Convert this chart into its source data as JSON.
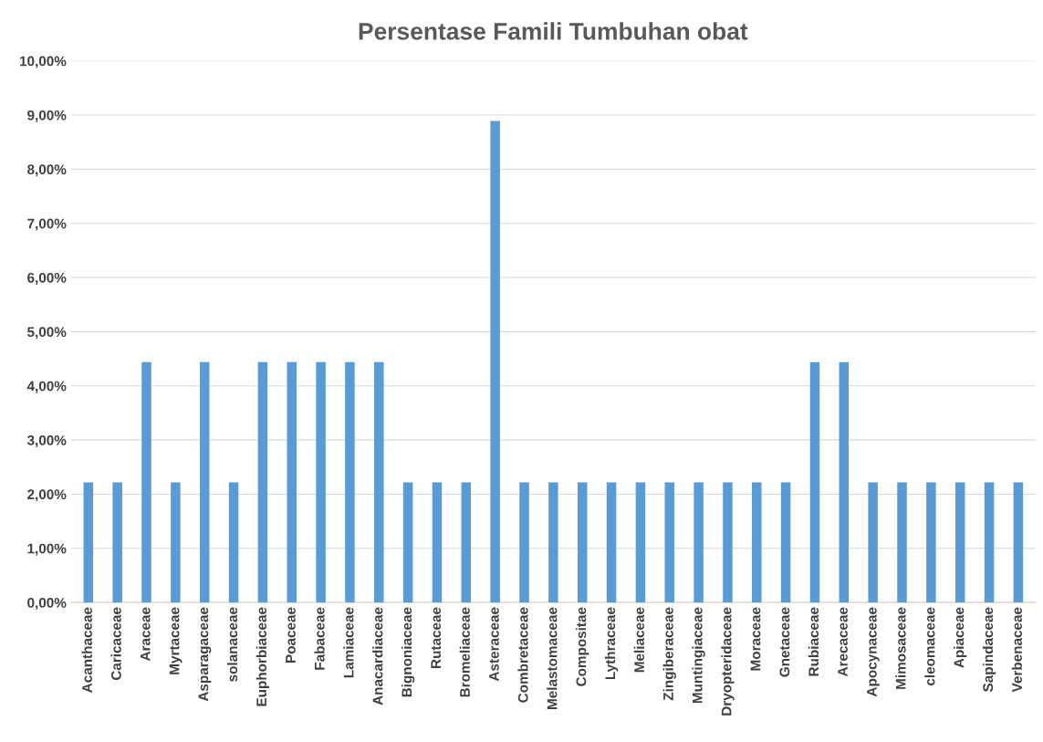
{
  "chart_data": {
    "type": "bar",
    "title": "Persentase Famili Tumbuhan obat",
    "categories": [
      "Acanthaceae",
      "Caricaceae",
      "Araceae",
      "Myrtaceae",
      "Asparagaceae",
      "solanaceae",
      "Euphorbiaceae",
      "Poaceae",
      "Fabaceae",
      "Lamiaceae",
      "Anacardiaceae",
      "Bignoniaceae",
      "Rutaceae",
      "Bromeliaceae",
      "Asteraceae",
      "Combretaceae",
      "Melastomaceae",
      "Compositae",
      "Lythraceae",
      "Meliaceae",
      "Zingiberaceae",
      "Muntingiaceae",
      "Dryopteridaceae",
      "Moraceae",
      "Gnetaceae",
      "Rubiaceae",
      "Arecaceae",
      "Apocynaceae",
      "Mimosaceae",
      "cleomaceae",
      "Apiaceae",
      "Sapindaceae",
      "Verbenaceae"
    ],
    "values": [
      2.22,
      2.22,
      4.44,
      2.22,
      4.44,
      2.22,
      4.44,
      4.44,
      4.44,
      4.44,
      4.44,
      2.22,
      2.22,
      2.22,
      8.89,
      2.22,
      2.22,
      2.22,
      2.22,
      2.22,
      2.22,
      2.22,
      2.22,
      2.22,
      2.22,
      4.44,
      4.44,
      2.22,
      2.22,
      2.22,
      2.22,
      2.22,
      2.22
    ],
    "color": "#5b9bd5",
    "ylim": [
      0,
      10
    ],
    "yticks": [
      {
        "value": 0,
        "label": "0,00%"
      },
      {
        "value": 1,
        "label": "1,00%"
      },
      {
        "value": 2,
        "label": "2,00%"
      },
      {
        "value": 3,
        "label": "3,00%"
      },
      {
        "value": 4,
        "label": "4,00%"
      },
      {
        "value": 5,
        "label": "5,00%"
      },
      {
        "value": 6,
        "label": "6,00%"
      },
      {
        "value": 7,
        "label": "7,00%"
      },
      {
        "value": 8,
        "label": "8,00%"
      },
      {
        "value": 9,
        "label": "9,00%"
      },
      {
        "value": 10,
        "label": "10,00%"
      }
    ],
    "grid": "y"
  }
}
